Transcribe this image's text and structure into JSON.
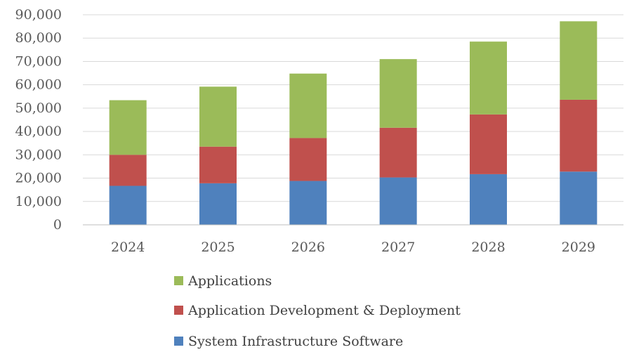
{
  "chart_data": {
    "type": "bar",
    "stacked": true,
    "categories": [
      "2024",
      "2025",
      "2026",
      "2027",
      "2028",
      "2029"
    ],
    "series": [
      {
        "name": "System Infrastructure Software",
        "color": "#4f81bd",
        "values": [
          16700,
          17800,
          18800,
          20300,
          21700,
          22800
        ]
      },
      {
        "name": "Application Development & Deployment",
        "color": "#c0504d",
        "values": [
          13300,
          15700,
          18400,
          21300,
          25600,
          30800
        ]
      },
      {
        "name": "Applications",
        "color": "#9bbb59",
        "values": [
          23400,
          25700,
          27600,
          29400,
          31200,
          33600
        ]
      }
    ],
    "legend_order": [
      "Applications",
      "Application Development & Deployment",
      "System Infrastructure Software"
    ],
    "ylim": [
      0,
      90000
    ],
    "yticks": [
      0,
      10000,
      20000,
      30000,
      40000,
      50000,
      60000,
      70000,
      80000,
      90000
    ],
    "ytick_labels": [
      "0",
      "10,000",
      "20,000",
      "30,000",
      "40,000",
      "50,000",
      "60,000",
      "70,000",
      "80,000",
      "90,000"
    ],
    "grid": true,
    "legend_position": "bottom-center",
    "title": "",
    "xlabel": "",
    "ylabel": ""
  }
}
